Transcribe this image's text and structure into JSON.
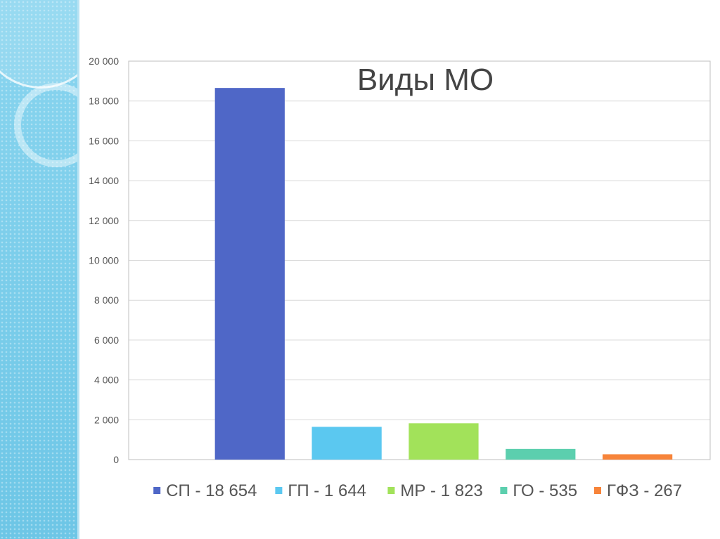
{
  "chart_data": {
    "type": "bar",
    "title": "Виды МО",
    "categories": [
      "СП - 18 654",
      "ГП - 1 644",
      "МР - 1 823",
      "ГО - 535",
      "ГФЗ - 267"
    ],
    "values": [
      18654,
      1644,
      1823,
      535,
      267
    ],
    "colors": [
      "#4f67c7",
      "#5bc8f0",
      "#a2e25a",
      "#5ccfae",
      "#f7843a"
    ],
    "ylim": [
      0,
      20000
    ],
    "yticks": [
      0,
      2000,
      4000,
      6000,
      8000,
      10000,
      12000,
      14000,
      16000,
      18000,
      20000
    ],
    "ytick_labels": [
      "0",
      "2 000",
      "4 000",
      "6 000",
      "8 000",
      "10 000",
      "12 000",
      "14 000",
      "16 000",
      "18 000",
      "20 000"
    ],
    "grid": true,
    "legend": "bottom",
    "xlabel": "",
    "ylabel": ""
  }
}
